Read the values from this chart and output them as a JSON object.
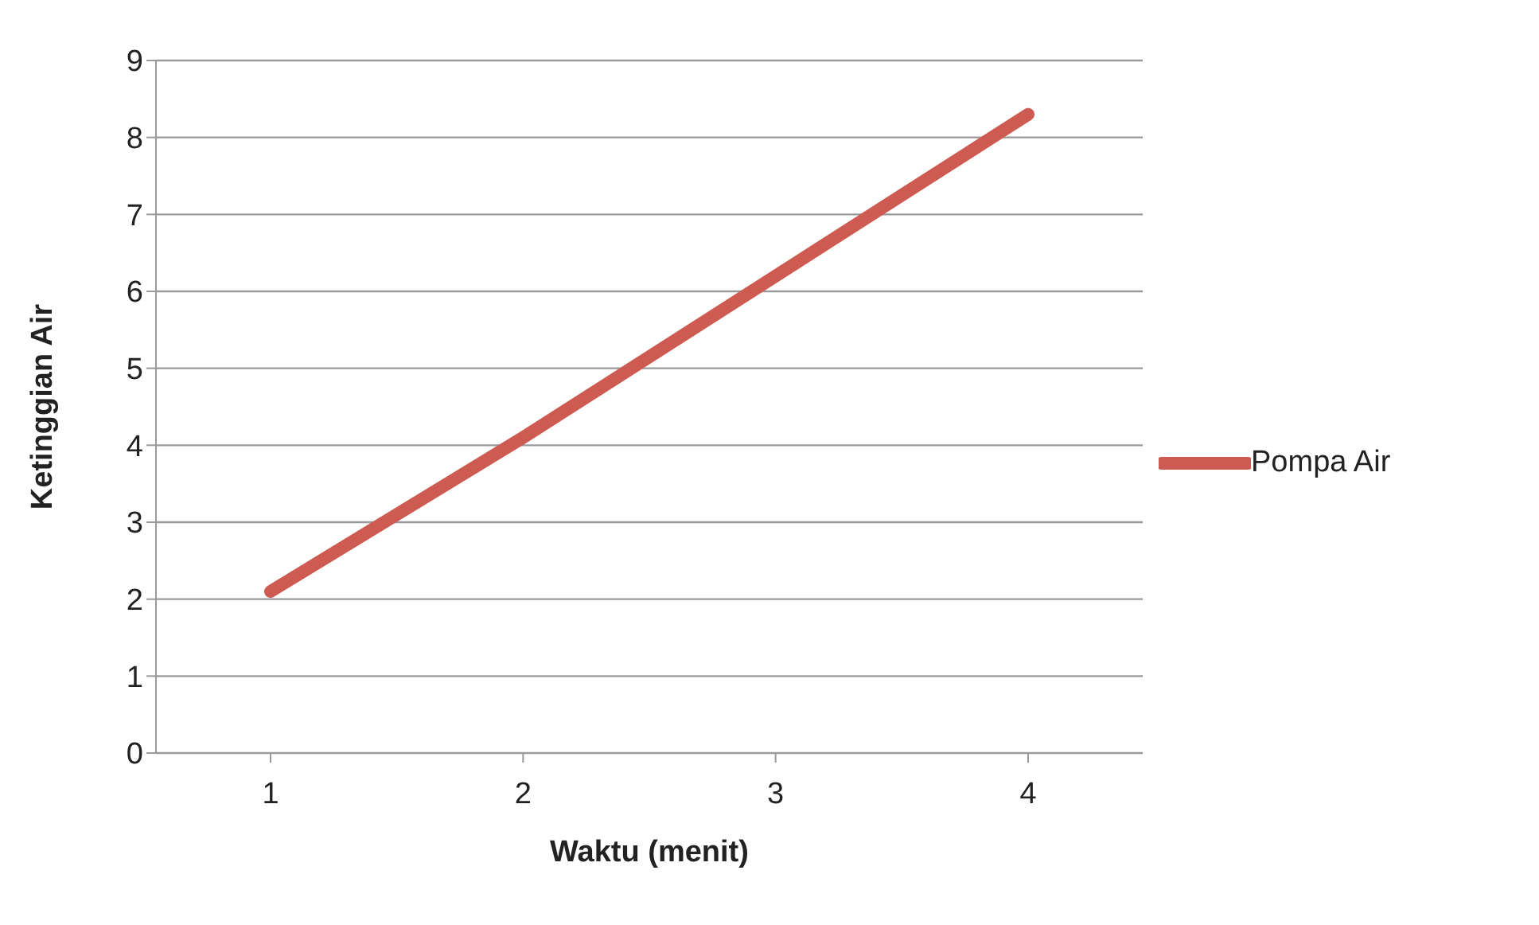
{
  "chart_data": {
    "type": "line",
    "xlabel": "Waktu (menit)",
    "ylabel": "Ketinggian Air",
    "categories": [
      "1",
      "2",
      "3",
      "4"
    ],
    "series": [
      {
        "name": "Pompa Air",
        "color": "#cd5b51",
        "values": [
          2.1,
          4.1,
          6.2,
          8.3
        ]
      }
    ],
    "ylim": [
      0,
      9
    ],
    "yticks": [
      0,
      1,
      2,
      3,
      4,
      5,
      6,
      7,
      8,
      9
    ],
    "grid": "y",
    "legend": "right",
    "marker": "none",
    "line_style": "solid"
  }
}
